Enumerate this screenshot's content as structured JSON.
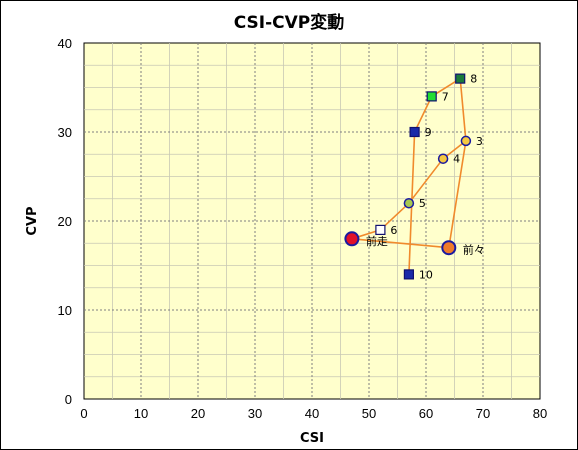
{
  "chart_data": {
    "type": "scatter",
    "title": "CSI-CVP変動",
    "xlabel": "CSI",
    "ylabel": "CVP",
    "xlim": [
      0,
      80
    ],
    "ylim": [
      0,
      40
    ],
    "xticks": [
      0,
      10,
      20,
      30,
      40,
      50,
      60,
      70,
      80
    ],
    "yticks": [
      0,
      10,
      20,
      30,
      40
    ],
    "grid": true,
    "colors": {
      "plot_bg": "#ffffcc",
      "grid": "#7f7f7f",
      "minor_grid": "#c8c8b4",
      "line": "#f08a2c",
      "marker_edge": "#1a1aa0"
    },
    "path_order": [
      "前々",
      "3",
      "4",
      "5",
      "6",
      "前走",
      "前々",
      "3",
      "8",
      "7",
      "9",
      "10"
    ],
    "points": [
      {
        "label": "前々",
        "x": 64,
        "y": 17,
        "marker": "circle",
        "size": "large",
        "fill": "#f07a2a"
      },
      {
        "label": "前走",
        "x": 47,
        "y": 18,
        "marker": "circle",
        "size": "large",
        "fill": "#e0102a"
      },
      {
        "label": "3",
        "x": 67,
        "y": 29,
        "marker": "circle",
        "size": "small",
        "fill": "#f5c842"
      },
      {
        "label": "4",
        "x": 63,
        "y": 27,
        "marker": "circle",
        "size": "small",
        "fill": "#f5c842"
      },
      {
        "label": "5",
        "x": 57,
        "y": 22,
        "marker": "circle",
        "size": "small",
        "fill": "#a8c850"
      },
      {
        "label": "6",
        "x": 52,
        "y": 19,
        "marker": "square",
        "size": "small",
        "fill": "#ffffff"
      },
      {
        "label": "7",
        "x": 61,
        "y": 34,
        "marker": "square",
        "size": "small",
        "fill": "#22dd33"
      },
      {
        "label": "8",
        "x": 66,
        "y": 36,
        "marker": "square",
        "size": "small",
        "fill": "#1a7a3a"
      },
      {
        "label": "9",
        "x": 58,
        "y": 30,
        "marker": "square",
        "size": "small",
        "fill": "#1a2aa8"
      },
      {
        "label": "10",
        "x": 57,
        "y": 14,
        "marker": "square",
        "size": "small",
        "fill": "#1a2aa8"
      }
    ]
  }
}
